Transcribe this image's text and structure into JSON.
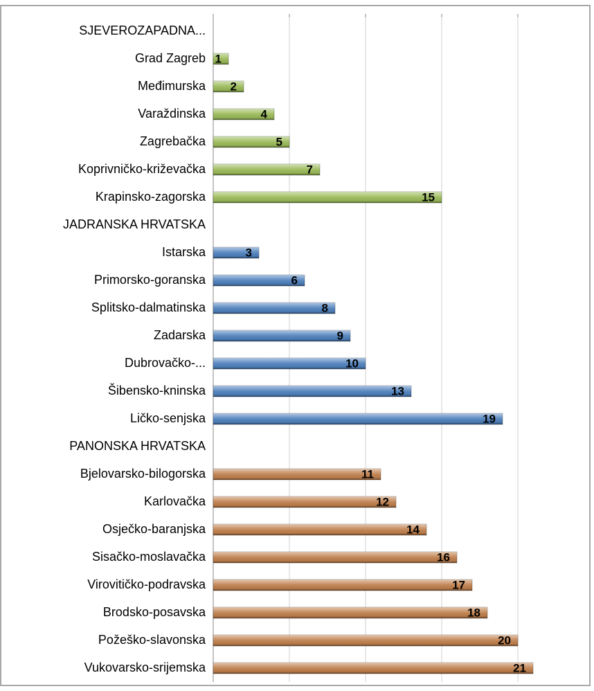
{
  "chart_data": {
    "type": "bar",
    "orientation": "horizontal",
    "categories": [
      "SJEVEROZAPADNA...",
      "Grad Zagreb",
      "Međimurska",
      "Varaždinska",
      "Zagrebačka",
      "Koprivničko-križevačka",
      "Krapinsko-zagorska",
      "JADRANSKA HRVATSKA",
      "Istarska",
      "Primorsko-goranska",
      "Splitsko-dalmatinska",
      "Zadarska",
      "Dubrovačko-...",
      "Šibensko-kninska",
      "Ličko-senjska",
      "PANONSKA HRVATSKA",
      "Bjelovarsko-bilogorska",
      "Karlovačka",
      "Osječko-baranjska",
      "Sisačko-moslavačka",
      "Virovitičko-podravska",
      "Brodsko-posavska",
      "Požeško-slavonska",
      "Vukovarsko-srijemska"
    ],
    "values": [
      null,
      1,
      2,
      4,
      5,
      7,
      15,
      null,
      3,
      6,
      8,
      9,
      10,
      13,
      19,
      null,
      11,
      12,
      14,
      16,
      17,
      18,
      20,
      21
    ],
    "colors": [
      null,
      "#9bbb59",
      "#9bbb59",
      "#9bbb59",
      "#9bbb59",
      "#9bbb59",
      "#9bbb59",
      null,
      "#4f81bd",
      "#4f81bd",
      "#4f81bd",
      "#4f81bd",
      "#4f81bd",
      "#4f81bd",
      "#4f81bd",
      null,
      "#c0804d",
      "#c0804d",
      "#c0804d",
      "#c0804d",
      "#c0804d",
      "#c0804d",
      "#c0804d",
      "#c0804d"
    ],
    "xlim": [
      0,
      25
    ],
    "xticks": [
      0,
      5,
      10,
      15,
      20
    ],
    "grid": true
  }
}
